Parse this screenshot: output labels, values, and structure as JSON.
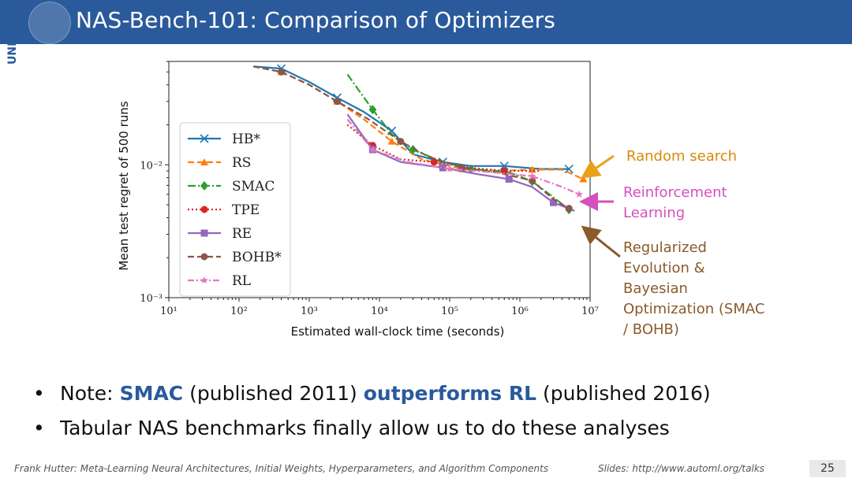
{
  "header": {
    "title": "NAS-Bench-101: Comparison of Optimizers",
    "logo_text": "UNI FREIBURG",
    "colors": {
      "header_bg": "#2a5a9b",
      "title": "#ffffff"
    }
  },
  "annotations": {
    "random_search": "Random search",
    "reinforcement_learning": "Reinforcement Learning",
    "regularized": "Regularized Evolution & Bayesian Optimization (SMAC / BOHB)",
    "colors": {
      "random_search": "#d88a0b",
      "reinforcement_learning": "#d54fbf",
      "regularized": "#8a5a2a"
    }
  },
  "bullets": {
    "b1_prefix": "Note: ",
    "b1_smac": "SMAC",
    "b1_middle": " (published 2011) ",
    "b1_out": "outperforms RL",
    "b1_suffix": " (published 2016)",
    "b2": "Tabular NAS benchmarks finally allow us to do these analyses",
    "highlight_color": "#2a5a9b"
  },
  "footer": {
    "left": "Frank Hutter: Meta-Learning Neural Architectures, Initial Weights, Hyperparameters, and Algorithm Components",
    "right": "Slides: http://www.automl.org/talks",
    "page": "25"
  },
  "chart_data": {
    "type": "line",
    "xscale": "log",
    "yscale": "log",
    "xlabel": "Estimated wall-clock time (seconds)",
    "ylabel": "Mean test regret of 500 runs",
    "xlim": [
      10,
      10000000
    ],
    "ylim": [
      0.001,
      0.06
    ],
    "xticks": [
      10,
      100,
      1000,
      10000,
      100000,
      1000000,
      10000000
    ],
    "xtick_labels": [
      "10^1",
      "10^2",
      "10^3",
      "10^4",
      "10^5",
      "10^6",
      "10^7"
    ],
    "yticks": [
      0.001,
      0.01
    ],
    "ytick_labels": [
      "10^-3",
      "10^-2"
    ],
    "legend_position": "left",
    "series": [
      {
        "name": "HB*",
        "color": "#1f77b4",
        "dash": "",
        "marker": "x",
        "points": [
          [
            160,
            0.055
          ],
          [
            400,
            0.053
          ],
          [
            1000,
            0.042
          ],
          [
            2500,
            0.032
          ],
          [
            6000,
            0.025
          ],
          [
            15000,
            0.018
          ],
          [
            30000,
            0.012
          ],
          [
            80000,
            0.0105
          ],
          [
            200000,
            0.0098
          ],
          [
            600000,
            0.0098
          ],
          [
            2000000,
            0.0093
          ],
          [
            5000000,
            0.0093
          ]
        ]
      },
      {
        "name": "RS",
        "color": "#ff7f0e",
        "dash": "8,4",
        "marker": "triangle",
        "points": [
          [
            160,
            0.055
          ],
          [
            400,
            0.05
          ],
          [
            1000,
            0.04
          ],
          [
            2500,
            0.03
          ],
          [
            6000,
            0.022
          ],
          [
            15000,
            0.015
          ],
          [
            40000,
            0.011
          ],
          [
            150000,
            0.0093
          ],
          [
            500000,
            0.009
          ],
          [
            1500000,
            0.0092
          ],
          [
            4000000,
            0.0092
          ],
          [
            8000000,
            0.0078
          ]
        ]
      },
      {
        "name": "SMAC",
        "color": "#2ca02c",
        "dash": "10,3,2,3",
        "marker": "diamond",
        "points": [
          [
            3500,
            0.048
          ],
          [
            8000,
            0.026
          ],
          [
            15000,
            0.017
          ],
          [
            30000,
            0.013
          ],
          [
            80000,
            0.0105
          ],
          [
            200000,
            0.0093
          ],
          [
            700000,
            0.0088
          ],
          [
            1500000,
            0.0075
          ],
          [
            3000000,
            0.0057
          ],
          [
            5000000,
            0.0046
          ]
        ]
      },
      {
        "name": "TPE",
        "color": "#d62728",
        "dash": "2,3",
        "marker": "circle",
        "points": [
          [
            3500,
            0.02
          ],
          [
            8000,
            0.014
          ],
          [
            20000,
            0.011
          ],
          [
            60000,
            0.0105
          ],
          [
            200000,
            0.0095
          ],
          [
            600000,
            0.009
          ],
          [
            2000000,
            0.009
          ]
        ]
      },
      {
        "name": "RE",
        "color": "#9467bd",
        "dash": "",
        "marker": "square",
        "points": [
          [
            3500,
            0.024
          ],
          [
            8000,
            0.013
          ],
          [
            20000,
            0.0105
          ],
          [
            80000,
            0.0095
          ],
          [
            250000,
            0.0085
          ],
          [
            700000,
            0.0078
          ],
          [
            1500000,
            0.0068
          ],
          [
            3000000,
            0.0052
          ],
          [
            6000000,
            0.0045
          ]
        ]
      },
      {
        "name": "BOHB*",
        "color": "#8c564b",
        "dash": "8,4",
        "marker": "circle",
        "points": [
          [
            160,
            0.055
          ],
          [
            400,
            0.05
          ],
          [
            1000,
            0.04
          ],
          [
            2500,
            0.03
          ],
          [
            7000,
            0.022
          ],
          [
            20000,
            0.015
          ],
          [
            50000,
            0.0115
          ],
          [
            150000,
            0.0095
          ],
          [
            500000,
            0.0087
          ],
          [
            1500000,
            0.0076
          ],
          [
            3000000,
            0.0055
          ],
          [
            5000000,
            0.0047
          ]
        ]
      },
      {
        "name": "RL",
        "color": "#e377c2",
        "dash": "8,3,2,3",
        "marker": "star",
        "points": [
          [
            3500,
            0.022
          ],
          [
            8000,
            0.013
          ],
          [
            25000,
            0.0105
          ],
          [
            100000,
            0.0093
          ],
          [
            400000,
            0.0088
          ],
          [
            1500000,
            0.0082
          ],
          [
            4000000,
            0.0068
          ],
          [
            7000000,
            0.006
          ]
        ]
      }
    ]
  }
}
